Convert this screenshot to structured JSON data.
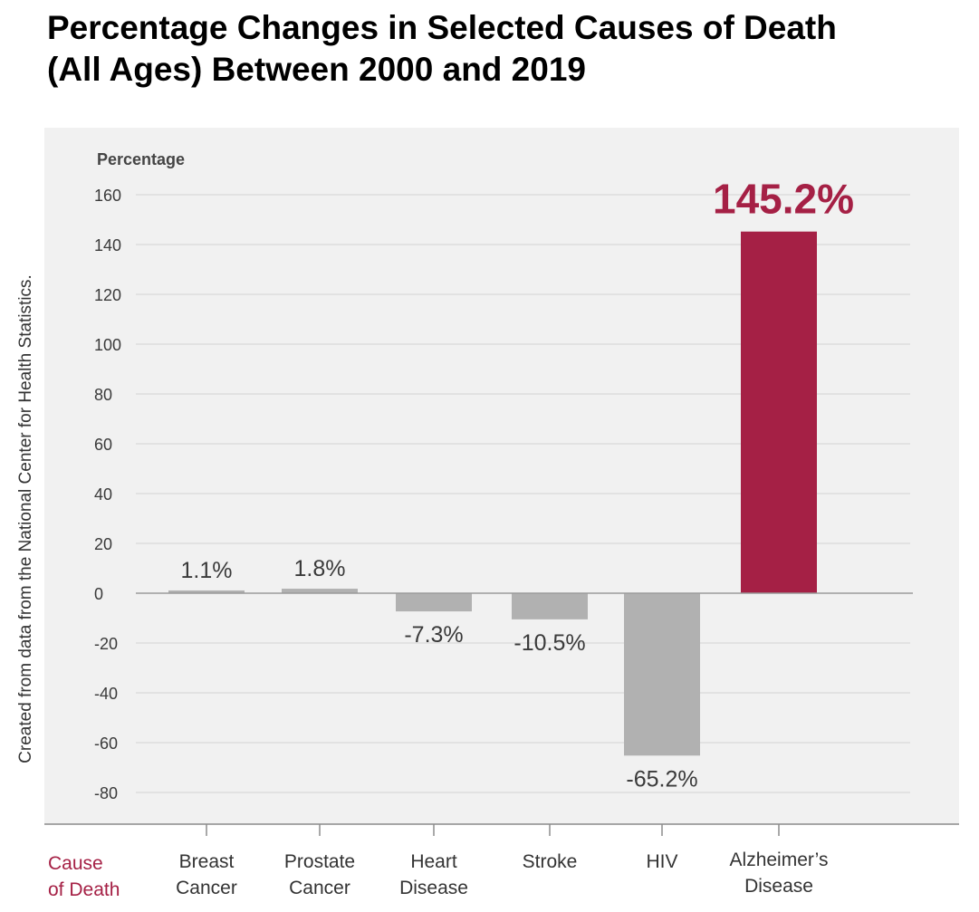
{
  "title_lines": [
    "Percentage Changes in Selected Causes of Death",
    "(All Ages) Between 2000 and 2019"
  ],
  "source_note": "Created from data from the National Center for Health Statistics.",
  "colors": {
    "highlight": "#a52045",
    "bar": "#b1b1b1",
    "panel": "#f1f1f1",
    "grid": "#d4d4d4",
    "axis": "#8c8c8c",
    "tick_text": "#3a3a3a",
    "label_text": "#3a3a3a"
  },
  "chart_data": {
    "type": "bar",
    "ylabel": "Percentage",
    "xlabel": "Cause of Death",
    "ylim": [
      -80,
      160
    ],
    "yticks": [
      160,
      140,
      120,
      100,
      80,
      60,
      40,
      20,
      0,
      -20,
      -40,
      -60,
      -80
    ],
    "grid": true,
    "categories": [
      [
        "Breast",
        "Cancer"
      ],
      [
        "Prostate",
        "Cancer"
      ],
      [
        "Heart",
        "Disease"
      ],
      [
        "Stroke"
      ],
      [
        "HIV"
      ],
      [
        "Alzheimer’s",
        "Disease"
      ]
    ],
    "values": [
      1.1,
      1.8,
      -7.3,
      -10.5,
      -65.2,
      145.2
    ],
    "data_labels": [
      "1.1%",
      "1.8%",
      "-7.3%",
      "-10.5%",
      "-65.2%",
      "145.2%"
    ],
    "highlight_index": 5
  }
}
